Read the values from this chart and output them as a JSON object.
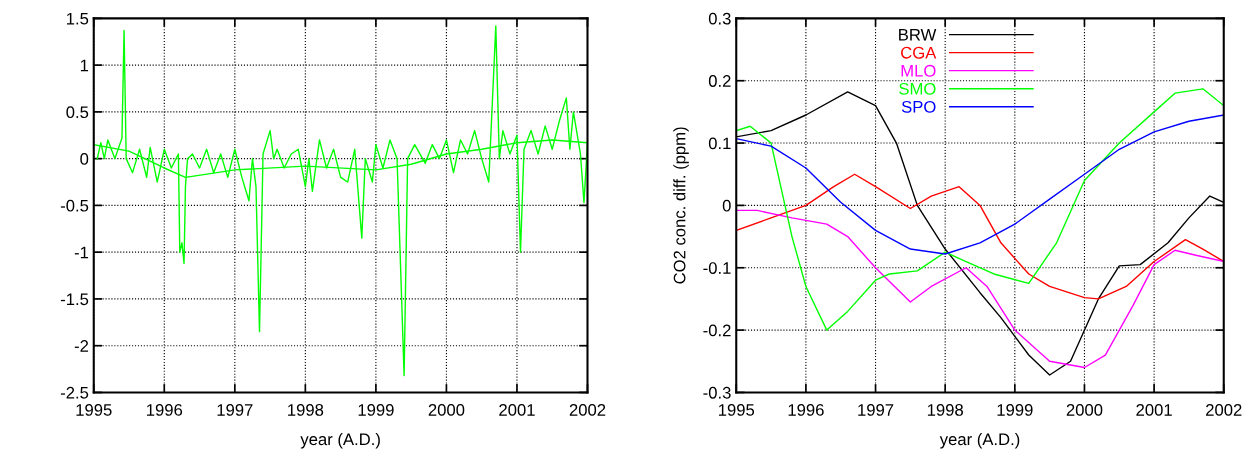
{
  "chart_data": [
    {
      "type": "line",
      "xlabel": "year (A.D.)",
      "xlim": [
        1995,
        2002
      ],
      "xticks": [
        1995,
        1996,
        1997,
        1998,
        1999,
        2000,
        2001,
        2002
      ],
      "ylim": [
        -2.5,
        1.5
      ],
      "yticks": [
        -2.5,
        -2,
        -1.5,
        -1,
        -0.5,
        0,
        0.5,
        1,
        1.5
      ],
      "grid": true,
      "legend": false,
      "line_style": "solid",
      "marker": "none",
      "series": [
        {
          "color": "#00ff00",
          "x": [
            1995.05,
            1995.1,
            1995.15,
            1995.2,
            1995.3,
            1995.4,
            1995.43,
            1995.46,
            1995.55,
            1995.65,
            1995.75,
            1995.8,
            1995.9,
            1996.0,
            1996.1,
            1996.2,
            1996.22,
            1996.25,
            1996.28,
            1996.3,
            1996.33,
            1996.4,
            1996.5,
            1996.6,
            1996.7,
            1996.8,
            1996.9,
            1997.0,
            1997.1,
            1997.2,
            1997.25,
            1997.3,
            1997.35,
            1997.4,
            1997.5,
            1997.55,
            1997.6,
            1997.7,
            1997.8,
            1997.9,
            1998.0,
            1998.05,
            1998.1,
            1998.2,
            1998.3,
            1998.4,
            1998.5,
            1998.6,
            1998.7,
            1998.8,
            1998.85,
            1998.95,
            1999.0,
            1999.1,
            1999.2,
            1999.3,
            1999.4,
            1999.45,
            1999.55,
            1999.7,
            1999.8,
            1999.9,
            2000.0,
            2000.1,
            2000.2,
            2000.3,
            2000.4,
            2000.5,
            2000.6,
            2000.7,
            2000.75,
            2000.8,
            2000.9,
            2001.0,
            2001.05,
            2001.1,
            2001.2,
            2001.3,
            2001.4,
            2001.5,
            2001.6,
            2001.7,
            2001.75,
            2001.8,
            2001.9,
            2001.95,
            2002.0
          ],
          "values": [
            0.0,
            0.17,
            0.0,
            0.2,
            0.0,
            0.22,
            1.37,
            0.0,
            -0.15,
            0.1,
            -0.2,
            0.12,
            -0.25,
            0.1,
            -0.1,
            0.05,
            -1.0,
            -0.9,
            -1.12,
            -0.3,
            0.0,
            0.05,
            -0.1,
            0.1,
            -0.15,
            0.05,
            -0.2,
            0.1,
            -0.2,
            -0.45,
            0.0,
            -0.3,
            -1.85,
            0.05,
            0.3,
            0.0,
            0.1,
            -0.1,
            0.05,
            0.1,
            -0.3,
            0.0,
            -0.35,
            0.2,
            -0.1,
            0.1,
            -0.2,
            -0.25,
            0.1,
            -0.85,
            0.0,
            -0.25,
            0.15,
            -0.1,
            0.2,
            0.0,
            -2.32,
            0.0,
            0.15,
            -0.05,
            0.15,
            0.0,
            0.2,
            -0.15,
            0.2,
            0.05,
            0.3,
            0.0,
            -0.25,
            1.42,
            0.0,
            0.3,
            0.05,
            0.25,
            -1.0,
            0.1,
            0.3,
            0.05,
            0.35,
            0.1,
            0.4,
            0.65,
            0.1,
            0.5,
            0.05,
            -0.47,
            0.17
          ]
        },
        {
          "color": "#00ff00",
          "x": [
            1995.0,
            1995.5,
            1996.0,
            1996.3,
            1997.0,
            1998.0,
            1999.0,
            1999.5,
            2000.0,
            2000.5,
            2001.0,
            2001.5,
            2002.0
          ],
          "values": [
            0.15,
            0.08,
            -0.1,
            -0.2,
            -0.12,
            -0.08,
            -0.12,
            -0.06,
            0.05,
            0.1,
            0.17,
            0.2,
            0.17
          ]
        }
      ]
    },
    {
      "type": "line",
      "xlabel": "year (A.D.)",
      "ylabel": "CO2 conc. diff. (ppm)",
      "xlim": [
        1995,
        2002
      ],
      "xticks": [
        1995,
        1996,
        1997,
        1998,
        1999,
        2000,
        2001,
        2002
      ],
      "ylim": [
        -0.3,
        0.3
      ],
      "yticks": [
        -0.3,
        -0.2,
        -0.1,
        0,
        0.1,
        0.2,
        0.3
      ],
      "grid": true,
      "legend": "top",
      "line_style": "solid",
      "marker": "none",
      "series": [
        {
          "name": "BRW",
          "color": "#000000",
          "x": [
            1995.0,
            1995.5,
            1996.0,
            1996.6,
            1997.0,
            1997.3,
            1997.6,
            1998.0,
            1998.5,
            1998.8,
            1999.2,
            1999.5,
            1999.8,
            2000.2,
            2000.5,
            2000.8,
            2001.2,
            2001.5,
            2001.8,
            2002.0
          ],
          "values": [
            0.11,
            0.12,
            0.145,
            0.182,
            0.16,
            0.1,
            0.0,
            -0.07,
            -0.14,
            -0.18,
            -0.24,
            -0.272,
            -0.25,
            -0.15,
            -0.097,
            -0.095,
            -0.06,
            -0.02,
            0.015,
            0.005
          ]
        },
        {
          "name": "CGA",
          "color": "#ff0000",
          "x": [
            1995.0,
            1995.5,
            1996.0,
            1996.4,
            1996.7,
            1997.0,
            1997.5,
            1997.8,
            1998.2,
            1998.5,
            1998.8,
            1999.2,
            1999.5,
            2000.0,
            2000.2,
            2000.6,
            2001.0,
            2001.45,
            2001.7,
            2002.0
          ],
          "values": [
            -0.04,
            -0.02,
            0.0,
            0.03,
            0.05,
            0.03,
            -0.005,
            0.015,
            0.03,
            0.0,
            -0.06,
            -0.11,
            -0.13,
            -0.148,
            -0.15,
            -0.13,
            -0.09,
            -0.055,
            -0.07,
            -0.09
          ]
        },
        {
          "name": "MLO",
          "color": "#ff00ff",
          "x": [
            1995.0,
            1995.3,
            1995.8,
            1996.3,
            1996.6,
            1997.0,
            1997.5,
            1997.8,
            1998.3,
            1998.6,
            1999.0,
            1999.5,
            2000.0,
            2000.3,
            2000.7,
            2001.0,
            2001.3,
            2001.6,
            2002.0
          ],
          "values": [
            -0.008,
            -0.008,
            -0.02,
            -0.03,
            -0.05,
            -0.1,
            -0.155,
            -0.13,
            -0.1,
            -0.13,
            -0.2,
            -0.25,
            -0.26,
            -0.24,
            -0.16,
            -0.095,
            -0.072,
            -0.08,
            -0.09
          ]
        },
        {
          "name": "SMO",
          "color": "#00ff00",
          "x": [
            1995.0,
            1995.2,
            1995.5,
            1995.8,
            1996.0,
            1996.3,
            1996.6,
            1997.0,
            1997.2,
            1997.6,
            1998.0,
            1998.3,
            1998.7,
            1999.2,
            1999.6,
            2000.0,
            2000.5,
            2001.0,
            2001.3,
            2001.7,
            2002.0
          ],
          "values": [
            0.12,
            0.127,
            0.1,
            -0.05,
            -0.13,
            -0.2,
            -0.17,
            -0.12,
            -0.11,
            -0.105,
            -0.075,
            -0.09,
            -0.11,
            -0.125,
            -0.06,
            0.04,
            0.1,
            0.15,
            0.18,
            0.187,
            0.16
          ]
        },
        {
          "name": "SPO",
          "color": "#0000ff",
          "x": [
            1995.0,
            1995.5,
            1996.0,
            1996.5,
            1997.0,
            1997.5,
            1998.0,
            1998.5,
            1999.0,
            1999.5,
            2000.0,
            2000.5,
            2001.0,
            2001.5,
            2002.0
          ],
          "values": [
            0.107,
            0.095,
            0.06,
            0.005,
            -0.04,
            -0.07,
            -0.078,
            -0.06,
            -0.03,
            0.01,
            0.05,
            0.09,
            0.118,
            0.135,
            0.145
          ]
        }
      ]
    }
  ]
}
